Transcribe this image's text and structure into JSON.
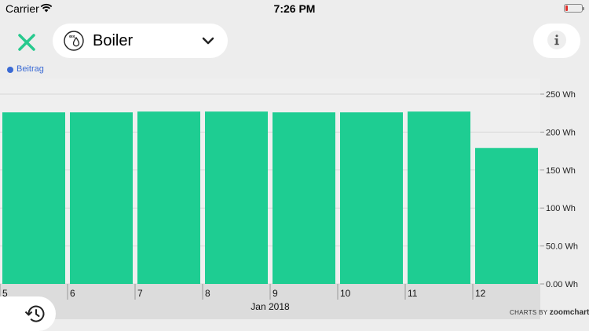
{
  "status_bar": {
    "carrier": "Carrier",
    "time": "7:26 PM"
  },
  "device": {
    "name": "Boiler",
    "icon": "water-heater-icon"
  },
  "legend": {
    "label": "Beitrag",
    "color": "#3a6ad4"
  },
  "chart_data": {
    "type": "bar",
    "categories": [
      "5",
      "6",
      "7",
      "8",
      "9",
      "10",
      "11",
      "12"
    ],
    "values": [
      226,
      226,
      227,
      227,
      226,
      226,
      227,
      179
    ],
    "color": "#1ecd92",
    "xlabel": "Jan 2018",
    "y_ticks": [
      "0.00 Wh",
      "50.0 Wh",
      "100 Wh",
      "150 Wh",
      "200 Wh",
      "250 Wh"
    ],
    "ylim": [
      0,
      250
    ],
    "grid": true
  },
  "credit": {
    "prefix": "CHARTS BY",
    "brand": "zoomcharts"
  }
}
